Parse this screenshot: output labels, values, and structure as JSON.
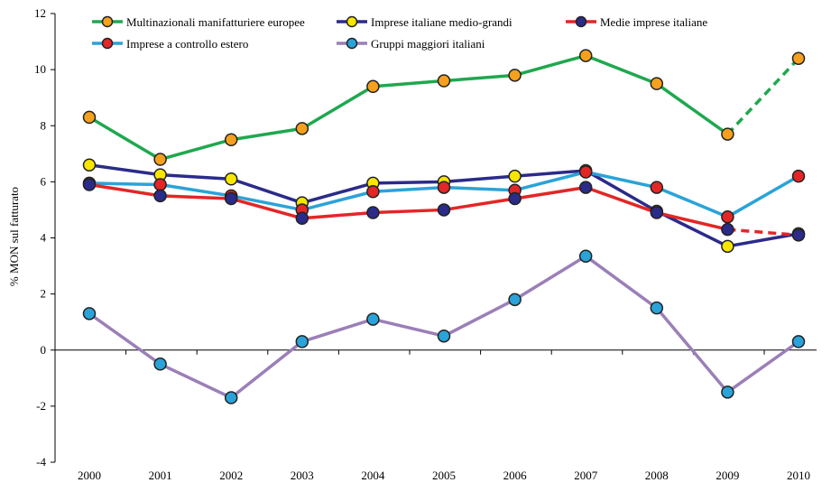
{
  "chart_data": {
    "type": "line",
    "title": "",
    "xlabel": "",
    "ylabel": "% MON sul fatturato",
    "ylim": [
      -4,
      12
    ],
    "yticks": [
      -4,
      -2,
      0,
      2,
      4,
      6,
      8,
      10,
      12
    ],
    "grid": false,
    "legend_position": "top",
    "categories": [
      "2000",
      "2001",
      "2002",
      "2003",
      "2004",
      "2005",
      "2006",
      "2007",
      "2008",
      "2009",
      "2010"
    ],
    "series": [
      {
        "name": "Gruppi maggiori italiani",
        "line_color": "#9b7fb8",
        "marker_color": "#2aa3d8",
        "values": [
          1.3,
          -0.5,
          -1.7,
          0.3,
          1.1,
          0.5,
          1.8,
          3.35,
          1.5,
          -1.5,
          0.3
        ],
        "dashed_from_index": null
      },
      {
        "name": "Imprese italiane medio-grandi",
        "line_color": "#2b2b8a",
        "marker_color": "#f6e600",
        "values": [
          6.6,
          6.25,
          6.1,
          5.25,
          5.95,
          6.0,
          6.2,
          6.4,
          4.95,
          3.7,
          4.15
        ],
        "dashed_from_index": null
      },
      {
        "name": "Imprese a controllo estero",
        "line_color": "#2aa3d8",
        "marker_color": "#e32626",
        "values": [
          5.95,
          5.9,
          5.5,
          5.0,
          5.65,
          5.8,
          5.7,
          6.35,
          5.8,
          4.75,
          6.2
        ],
        "dashed_from_index": null
      },
      {
        "name": "Medie imprese italiane",
        "line_color": "#e32626",
        "marker_color": "#2b2b8a",
        "values": [
          5.9,
          5.5,
          5.4,
          4.7,
          4.9,
          5.0,
          5.4,
          5.8,
          4.9,
          4.3,
          4.1
        ],
        "dashed_from_index": 9
      },
      {
        "name": "Multinazionali manifatturiere europee",
        "line_color": "#1fa84f",
        "marker_color": "#f5a11d",
        "values": [
          8.3,
          6.8,
          7.5,
          7.9,
          9.4,
          9.6,
          9.8,
          10.5,
          9.5,
          7.7,
          10.4
        ],
        "dashed_from_index": 9
      }
    ],
    "legend": [
      {
        "label": "Multinazionali manifatturiere europee",
        "line_color": "#1fa84f",
        "marker_color": "#f5a11d"
      },
      {
        "label": "Imprese italiane medio-grandi",
        "line_color": "#2b2b8a",
        "marker_color": "#f6e600"
      },
      {
        "label": "Medie imprese italiane",
        "line_color": "#e32626",
        "marker_color": "#2b2b8a"
      },
      {
        "label": "Imprese a controllo estero",
        "line_color": "#2aa3d8",
        "marker_color": "#e32626"
      },
      {
        "label": "Gruppi maggiori italiani",
        "line_color": "#9b7fb8",
        "marker_color": "#2aa3d8"
      }
    ]
  }
}
